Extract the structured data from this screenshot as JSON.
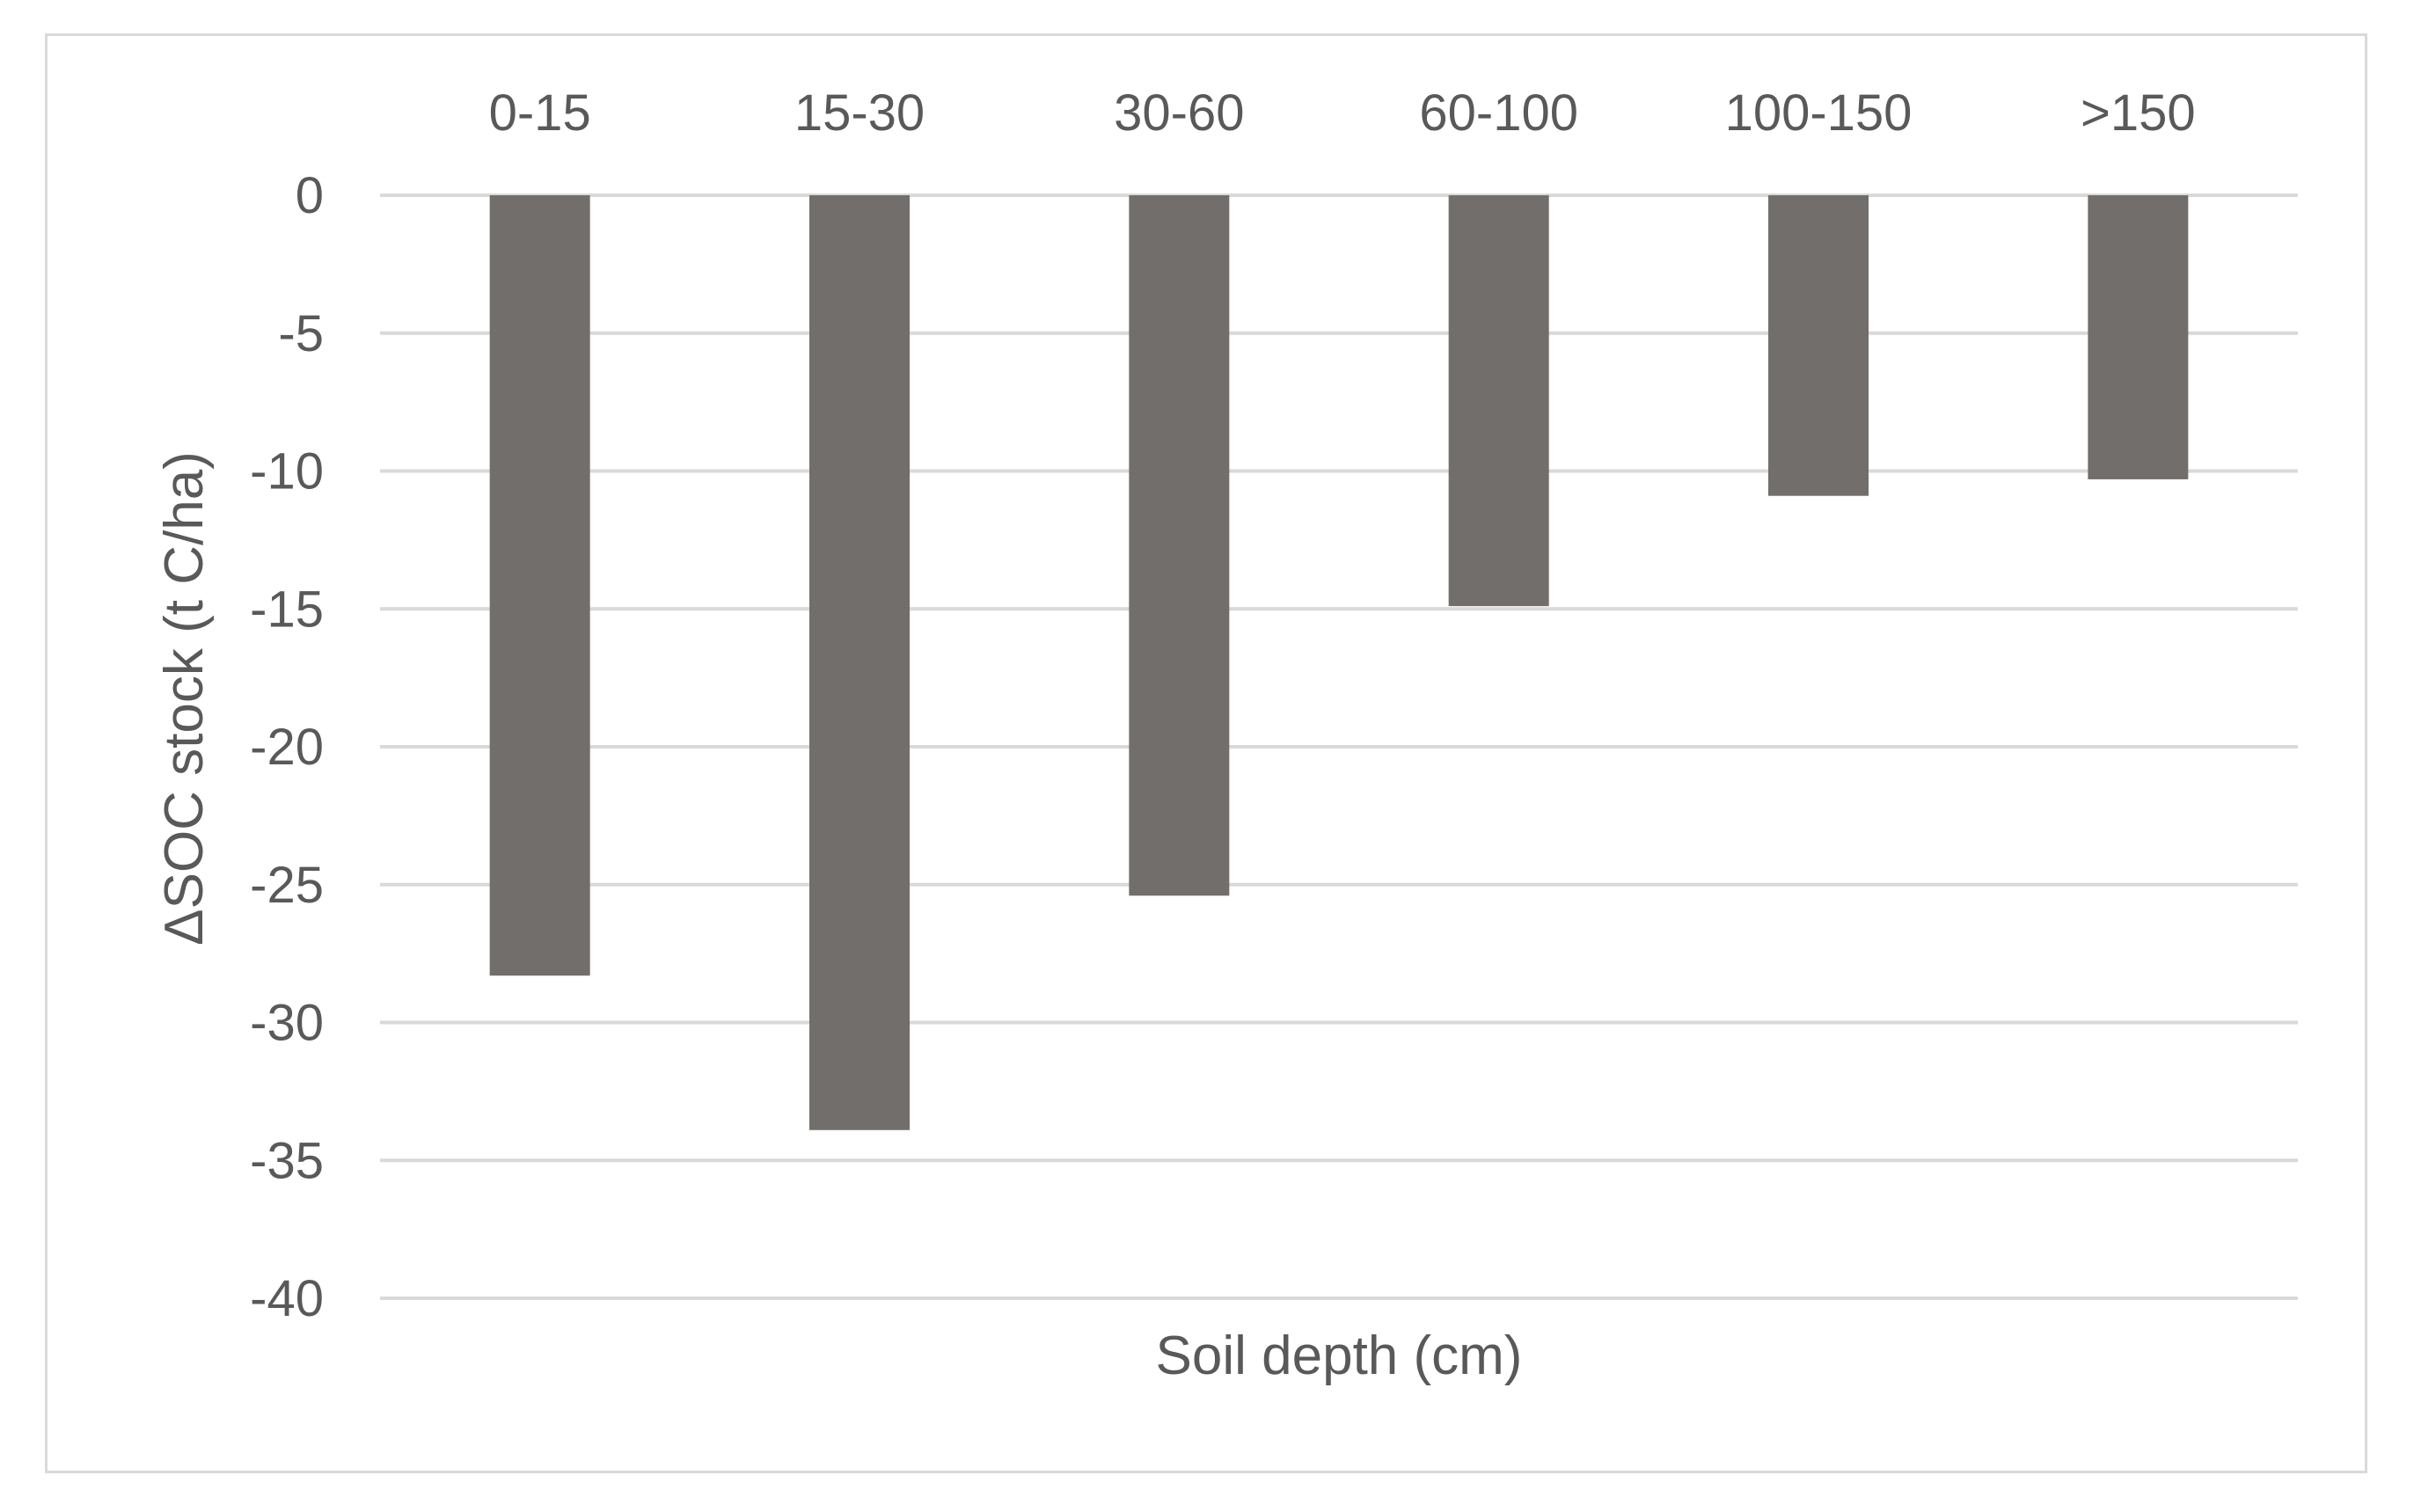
{
  "chart_data": {
    "type": "bar",
    "categories": [
      "0-15",
      "15-30",
      "30-60",
      "60-100",
      "100-150",
      ">150"
    ],
    "values": [
      -28.3,
      -33.9,
      -25.4,
      -14.9,
      -10.9,
      -10.3
    ],
    "xlabel": "Soil depth (cm)",
    "ylabel": "ΔSOC stock (t C/ha)",
    "ylim": [
      -40,
      0
    ],
    "yticks": [
      0,
      -5,
      -10,
      -15,
      -20,
      -25,
      -30,
      -35,
      -40
    ],
    "ytick_labels": [
      "0",
      "-5",
      "-10",
      "-15",
      "-20",
      "-25",
      "-30",
      "-35",
      "-40"
    ],
    "grid": true,
    "category_labels_position": "top",
    "colors": {
      "bar": "#726e6b",
      "grid": "#d9d9d9",
      "text": "#595959",
      "border": "#d9d9d9"
    }
  }
}
